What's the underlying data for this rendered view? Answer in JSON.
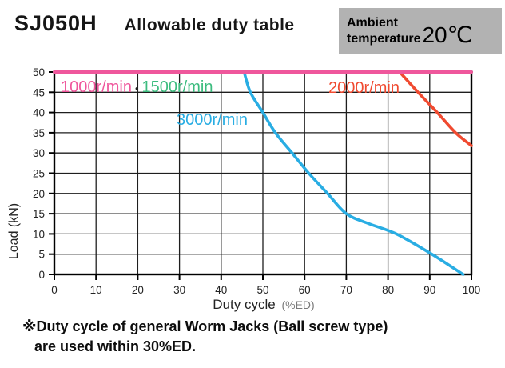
{
  "header": {
    "model": "SJ050H",
    "title": "Allowable duty table",
    "ambient_label_line1": "Ambient",
    "ambient_label_line2": "temperature",
    "ambient_value": "20℃",
    "box_bg": "#b2b2b2"
  },
  "chart_data": {
    "type": "line",
    "title": "Allowable duty table",
    "xlabel": "Duty cycle",
    "xlabel_unit": "(%ED)",
    "ylabel": "Load  (kN)",
    "xlim": [
      0,
      100
    ],
    "ylim": [
      0,
      50
    ],
    "xticks": [
      0,
      10,
      20,
      30,
      40,
      50,
      60,
      70,
      80,
      90,
      100
    ],
    "yticks": [
      0,
      5,
      10,
      15,
      20,
      25,
      30,
      35,
      40,
      45,
      50
    ],
    "grid": true,
    "grid_color": "#1e1e1e",
    "border_color": "#000000",
    "series": [
      {
        "name": "1500r/min",
        "color": "#3dbc7f",
        "width": 4,
        "points": [
          [
            0,
            50
          ],
          [
            100,
            50
          ]
        ]
      },
      {
        "name": "2000r/min",
        "color": "#f04a30",
        "width": 3.6,
        "points": [
          [
            82.8,
            50
          ],
          [
            87.2,
            45
          ],
          [
            91.8,
            40
          ],
          [
            96.2,
            35
          ],
          [
            100,
            31.8
          ]
        ]
      },
      {
        "name": "3000r/min",
        "color": "#29ade3",
        "width": 3.6,
        "points": [
          [
            45.5,
            50
          ],
          [
            47,
            45
          ],
          [
            50,
            40
          ],
          [
            53,
            35
          ],
          [
            57,
            30
          ],
          [
            61,
            25
          ],
          [
            65.5,
            20
          ],
          [
            70,
            15
          ],
          [
            75.5,
            12.5
          ],
          [
            82,
            10
          ],
          [
            90.5,
            5
          ],
          [
            98,
            0
          ]
        ]
      },
      {
        "name": "1000r/min",
        "color": "#ef579c",
        "width": 4,
        "points": [
          [
            0,
            50
          ],
          [
            100,
            50
          ]
        ]
      }
    ],
    "labels": {
      "l1000": {
        "text": "1000r/min",
        "color": "#ef579c"
      },
      "separator": {
        "text": "•",
        "color": "#222222"
      },
      "l1500": {
        "text": "1500r/min",
        "color": "#3dbc7f"
      },
      "l2000": {
        "text": "2000r/min",
        "color": "#f04a30"
      },
      "l3000": {
        "text": "3000r/min",
        "color": "#29ade3"
      }
    }
  },
  "footnote": {
    "line1": "※Duty cycle of general Worm Jacks (Ball screw type)",
    "line2": "are used within 30%ED."
  }
}
